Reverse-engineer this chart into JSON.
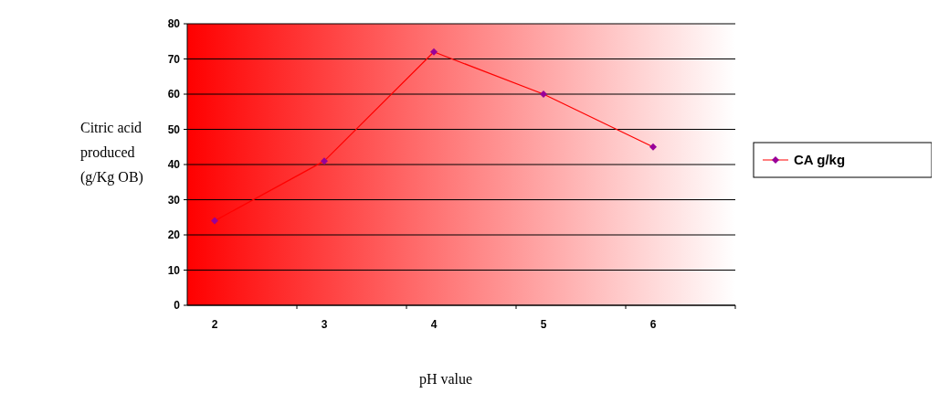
{
  "chart_data": {
    "type": "line",
    "xlabel": "pH value",
    "ylabel": "Citric acid produced (g/Kg OB)",
    "categories": [
      "2",
      "3",
      "4",
      "5",
      "6"
    ],
    "series": [
      {
        "name": "CA g/kg",
        "color": "#ff0000",
        "values": [
          24,
          41,
          72,
          60,
          45
        ]
      }
    ],
    "ylim": [
      0,
      80
    ],
    "yticks": [
      0,
      10,
      20,
      30,
      40,
      50,
      60,
      70,
      80
    ],
    "grid": "y",
    "legend": "right",
    "marker": "diamond",
    "line_style": "solid"
  }
}
